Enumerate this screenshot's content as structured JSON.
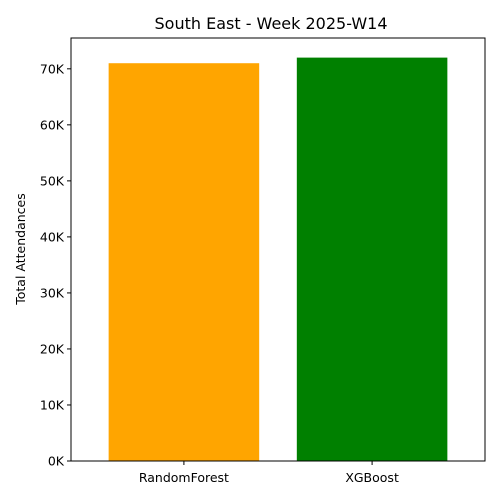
{
  "chart_data": {
    "type": "bar",
    "title": "South East - Week 2025-W14",
    "xlabel": "",
    "ylabel": "Total Attendances",
    "categories": [
      "RandomForest",
      "XGBoost"
    ],
    "values": [
      71000,
      72000
    ],
    "colors": [
      "#FFA500",
      "#008000"
    ],
    "ylim": [
      0,
      75500
    ],
    "yticks": [
      0,
      10000,
      20000,
      30000,
      40000,
      50000,
      60000,
      70000
    ],
    "ytick_labels": [
      "0K",
      "10K",
      "20K",
      "30K",
      "40K",
      "50K",
      "60K",
      "70K"
    ],
    "grid": false,
    "legend": "none"
  }
}
